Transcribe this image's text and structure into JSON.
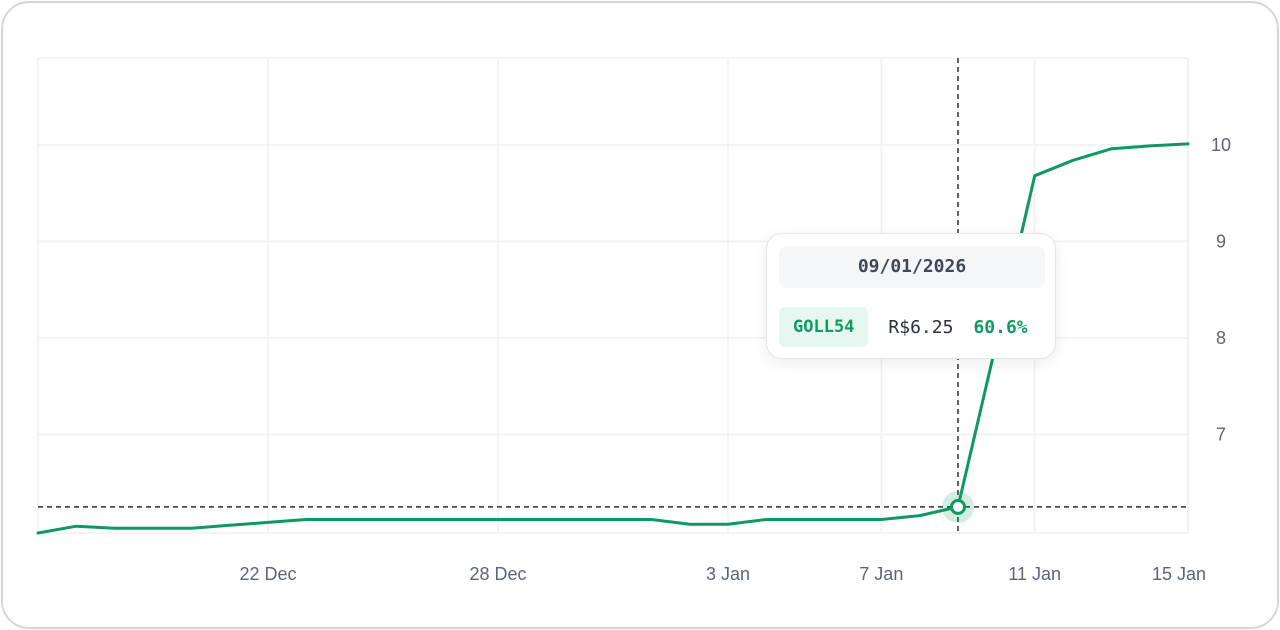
{
  "chart_data": {
    "type": "line",
    "x": [
      "2025-12-16",
      "2025-12-17",
      "2025-12-18",
      "2025-12-19",
      "2025-12-20",
      "2025-12-21",
      "2025-12-22",
      "2025-12-23",
      "2025-12-24",
      "2025-12-25",
      "2025-12-26",
      "2025-12-27",
      "2025-12-28",
      "2025-12-29",
      "2025-12-30",
      "2025-12-31",
      "2026-01-01",
      "2026-01-02",
      "2026-01-03",
      "2026-01-04",
      "2026-01-05",
      "2026-01-06",
      "2026-01-07",
      "2026-01-08",
      "2026-01-09",
      "2026-01-10",
      "2026-01-11",
      "2026-01-12",
      "2026-01-13",
      "2026-01-14",
      "2026-01-15"
    ],
    "series": [
      {
        "values": [
          5.98,
          6.05,
          6.03,
          6.03,
          6.03,
          6.06,
          6.09,
          6.12,
          6.12,
          6.12,
          6.12,
          6.12,
          6.12,
          6.12,
          6.12,
          6.12,
          6.12,
          6.07,
          6.07,
          6.12,
          6.12,
          6.12,
          6.12,
          6.16,
          6.25,
          7.95,
          9.68,
          9.84,
          9.96,
          9.99,
          10.01
        ]
      }
    ],
    "xticks": [
      "22 Dec",
      "28 Dec",
      "3 Jan",
      "7 Jan",
      "11 Jan",
      "15 Jan"
    ],
    "yticks": [
      "7",
      "8",
      "9",
      "10"
    ],
    "ylim": [
      5.98,
      10.9
    ],
    "grid": true,
    "y_axis_position": "right",
    "line_color": "#0f9960",
    "crosshair": {
      "x": "2026-01-09",
      "y": 6.25
    }
  },
  "tooltip": {
    "date": "09/01/2026",
    "ticker": "GOLL54",
    "price": "R$6.25",
    "change": "60.6%"
  }
}
